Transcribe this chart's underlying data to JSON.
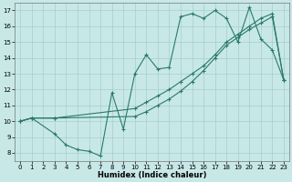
{
  "xlabel": "Humidex (Indice chaleur)",
  "bg_color": "#c8e8e8",
  "grid_color": "#a8cccc",
  "line_color": "#2a7a6a",
  "xlim": [
    -0.5,
    23.5
  ],
  "ylim": [
    7.5,
    17.5
  ],
  "xticks": [
    0,
    1,
    2,
    3,
    4,
    5,
    6,
    7,
    8,
    9,
    10,
    11,
    12,
    13,
    14,
    15,
    16,
    17,
    18,
    19,
    20,
    21,
    22,
    23
  ],
  "yticks": [
    8,
    9,
    10,
    11,
    12,
    13,
    14,
    15,
    16,
    17
  ],
  "line1_x": [
    0,
    1,
    3,
    4,
    5,
    6,
    7,
    8,
    9,
    10,
    11,
    12,
    13,
    14,
    15,
    16,
    17,
    18,
    19,
    20,
    21,
    22,
    23
  ],
  "line1_y": [
    10,
    10.2,
    9.2,
    8.5,
    8.2,
    8.1,
    7.8,
    11.8,
    9.5,
    13.0,
    14.2,
    13.3,
    13.4,
    16.6,
    16.8,
    16.5,
    17.0,
    16.5,
    15.0,
    17.2,
    15.2,
    14.5,
    12.6
  ],
  "line2_x": [
    0,
    1,
    3,
    10,
    11,
    12,
    13,
    14,
    15,
    16,
    17,
    18,
    19,
    20,
    21,
    22,
    23
  ],
  "line2_y": [
    10,
    10.2,
    10.2,
    10.8,
    11.2,
    11.6,
    12.0,
    12.5,
    13.0,
    13.5,
    14.2,
    15.0,
    15.5,
    16.0,
    16.5,
    16.8,
    12.6
  ],
  "line3_x": [
    0,
    1,
    3,
    10,
    11,
    12,
    13,
    14,
    15,
    16,
    17,
    18,
    19,
    20,
    21,
    22,
    23
  ],
  "line3_y": [
    10,
    10.2,
    10.2,
    10.3,
    10.6,
    11.0,
    11.4,
    11.9,
    12.5,
    13.2,
    14.0,
    14.8,
    15.3,
    15.8,
    16.2,
    16.6,
    12.6
  ]
}
